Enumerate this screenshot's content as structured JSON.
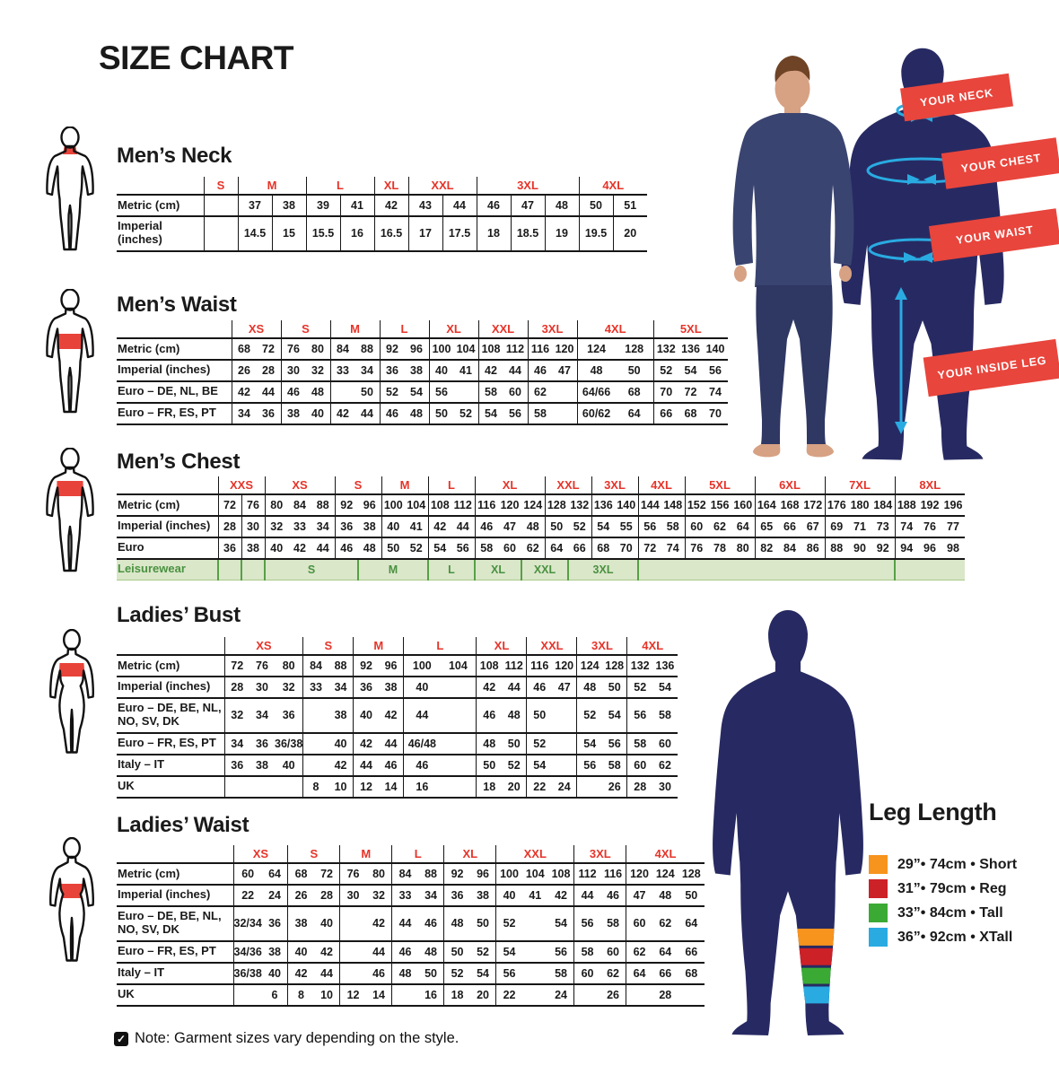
{
  "page": {
    "title": "SIZE CHART",
    "note": "Note: Garment sizes vary depending on the style."
  },
  "sections": [
    {
      "title": "Men’s Neck",
      "table": {
        "groups": [
          {
            "label": "S",
            "span": 1
          },
          {
            "label": "M",
            "span": 2
          },
          {
            "label": "L",
            "span": 2
          },
          {
            "label": "XL",
            "span": 1
          },
          {
            "label": "XXL",
            "span": 2
          },
          {
            "label": "3XL",
            "span": 3
          },
          {
            "label": "4XL",
            "span": 2
          }
        ],
        "rows": [
          {
            "label": "Metric (cm)",
            "cells": [
              "",
              "37",
              "38",
              "39",
              "41",
              "42",
              "43",
              "44",
              "46",
              "47",
              "48",
              "50",
              "51"
            ]
          },
          {
            "label": "Imperial (inches)",
            "cells": [
              "",
              "14.5",
              "15",
              "15.5",
              "16",
              "16.5",
              "17",
              "17.5",
              "18",
              "18.5",
              "19",
              "19.5",
              "20"
            ]
          }
        ]
      }
    },
    {
      "title": "Men’s Waist",
      "table": {
        "groups": [
          {
            "label": "XS",
            "span": 2
          },
          {
            "label": "S",
            "span": 2
          },
          {
            "label": "M",
            "span": 2
          },
          {
            "label": "L",
            "span": 2
          },
          {
            "label": "XL",
            "span": 2
          },
          {
            "label": "XXL",
            "span": 2
          },
          {
            "label": "3XL",
            "span": 2
          },
          {
            "label": "4XL",
            "span": 2,
            "wf": 1.55
          },
          {
            "label": "5XL",
            "span": 3
          }
        ],
        "rows": [
          {
            "label": "Metric (cm)",
            "cells": [
              "68",
              "72",
              "76",
              "80",
              "84",
              "88",
              "92",
              "96",
              "100",
              "104",
              "108",
              "112",
              "116",
              "120",
              "124",
              "128",
              "132",
              "136",
              "140"
            ]
          },
          {
            "label": "Imperial (inches)",
            "cells": [
              "26",
              "28",
              "30",
              "32",
              "33",
              "34",
              "36",
              "38",
              "40",
              "41",
              "42",
              "44",
              "46",
              "47",
              "48",
              "50",
              "52",
              "54",
              "56"
            ]
          },
          {
            "label": "Euro – DE, NL, BE",
            "cells": [
              "42",
              "44",
              "46",
              "48",
              "",
              "50",
              "52",
              "54",
              "56",
              "",
              "58",
              "60",
              "62",
              "",
              "64/66",
              "68",
              "70",
              "72",
              "74"
            ]
          },
          {
            "label": "Euro – FR, ES, PT",
            "cells": [
              "34",
              "36",
              "38",
              "40",
              "42",
              "44",
              "46",
              "48",
              "50",
              "52",
              "54",
              "56",
              "58",
              "",
              "60/62",
              "64",
              "66",
              "68",
              "70"
            ]
          }
        ]
      }
    },
    {
      "title": "Men’s Chest",
      "table": {
        "groups": [
          {
            "label": "XXS",
            "span": 2
          },
          {
            "label": "XS",
            "span": 3
          },
          {
            "label": "S",
            "span": 2
          },
          {
            "label": "M",
            "span": 2
          },
          {
            "label": "L",
            "span": 2
          },
          {
            "label": "XL",
            "span": 3
          },
          {
            "label": "XXL",
            "span": 2
          },
          {
            "label": "3XL",
            "span": 2
          },
          {
            "label": "4XL",
            "span": 2
          },
          {
            "label": "5XL",
            "span": 3
          },
          {
            "label": "6XL",
            "span": 3
          },
          {
            "label": "7XL",
            "span": 3
          },
          {
            "label": "8XL",
            "span": 3
          }
        ],
        "rows": [
          {
            "label": "Metric (cm)",
            "cells": [
              "72",
              "76",
              "80",
              "84",
              "88",
              "92",
              "96",
              "100",
              "104",
              "108",
              "112",
              "116",
              "120",
              "124",
              "128",
              "132",
              "136",
              "140",
              "144",
              "148",
              "152",
              "156",
              "160",
              "164",
              "168",
              "172",
              "176",
              "180",
              "184",
              "188",
              "192",
              "196"
            ]
          },
          {
            "label": "Imperial (inches)",
            "cells": [
              "28",
              "30",
              "32",
              "33",
              "34",
              "36",
              "38",
              "40",
              "41",
              "42",
              "44",
              "46",
              "47",
              "48",
              "50",
              "52",
              "54",
              "55",
              "56",
              "58",
              "60",
              "62",
              "64",
              "65",
              "66",
              "67",
              "69",
              "71",
              "73",
              "74",
              "76",
              "77"
            ]
          },
          {
            "label": "Euro",
            "cells": [
              "36",
              "38",
              "40",
              "42",
              "44",
              "46",
              "48",
              "50",
              "52",
              "54",
              "56",
              "58",
              "60",
              "62",
              "64",
              "66",
              "68",
              "70",
              "72",
              "74",
              "76",
              "78",
              "80",
              "82",
              "84",
              "86",
              "88",
              "90",
              "92",
              "94",
              "96",
              "98"
            ]
          },
          {
            "label": "Leisurewear",
            "leisure": true,
            "cells": [
              "",
              "",
              {
                "v": "S",
                "span": 4
              },
              {
                "v": "M",
                "span": 3
              },
              {
                "v": "L",
                "span": 2
              },
              {
                "v": "XL",
                "span": 2
              },
              {
                "v": "XXL",
                "span": 2
              },
              {
                "v": "3XL",
                "span": 3
              },
              {
                "v": "",
                "span": 11
              },
              {
                "v": "",
                "span": 3
              }
            ]
          }
        ]
      }
    },
    {
      "title": "Ladies’ Bust",
      "table": {
        "groups": [
          {
            "label": "XS",
            "span": 3
          },
          {
            "label": "S",
            "span": 2
          },
          {
            "label": "M",
            "span": 2
          },
          {
            "label": "L",
            "span": 2,
            "wf": 1.45
          },
          {
            "label": "XL",
            "span": 2
          },
          {
            "label": "XXL",
            "span": 2
          },
          {
            "label": "3XL",
            "span": 2
          },
          {
            "label": "4XL",
            "span": 2
          }
        ],
        "rows": [
          {
            "label": "Metric (cm)",
            "cells": [
              "72",
              "76",
              "80",
              "84",
              "88",
              "92",
              "96",
              "100",
              "104",
              "108",
              "112",
              "116",
              "120",
              "124",
              "128",
              "132",
              "136"
            ]
          },
          {
            "label": "Imperial (inches)",
            "cells": [
              "28",
              "30",
              "32",
              "33",
              "34",
              "36",
              "38",
              "40",
              "",
              "42",
              "44",
              "46",
              "47",
              "48",
              "50",
              "52",
              "54"
            ]
          },
          {
            "label": "Euro –  DE, BE, NL, NO, SV, DK",
            "cells": [
              "32",
              "34",
              "36",
              "",
              "38",
              "40",
              "42",
              "44",
              "",
              "46",
              "48",
              "50",
              "",
              "52",
              "54",
              "56",
              "58"
            ]
          },
          {
            "label": "Euro – FR, ES, PT",
            "cells": [
              "34",
              "36",
              "36/38",
              "",
              "40",
              "42",
              "44",
              "46/48",
              "",
              "48",
              "50",
              "52",
              "",
              "54",
              "56",
              "58",
              "60"
            ]
          },
          {
            "label": "Italy – IT",
            "cells": [
              "36",
              "38",
              "40",
              "",
              "42",
              "44",
              "46",
              "46",
              "",
              "50",
              "52",
              "54",
              "",
              "56",
              "58",
              "60",
              "62"
            ]
          },
          {
            "label": "UK",
            "cells": [
              "",
              "",
              "",
              "8",
              "10",
              "12",
              "14",
              "16",
              "",
              "18",
              "20",
              "22",
              "24",
              "",
              "26",
              "28",
              "30"
            ]
          }
        ]
      }
    },
    {
      "title": "Ladies’ Waist",
      "table": {
        "groups": [
          {
            "label": "XS",
            "span": 2
          },
          {
            "label": "S",
            "span": 2
          },
          {
            "label": "M",
            "span": 2
          },
          {
            "label": "L",
            "span": 2
          },
          {
            "label": "XL",
            "span": 2
          },
          {
            "label": "XXL",
            "span": 3
          },
          {
            "label": "3XL",
            "span": 2
          },
          {
            "label": "4XL",
            "span": 3
          }
        ],
        "rows": [
          {
            "label": "Metric (cm)",
            "cells": [
              "60",
              "64",
              "68",
              "72",
              "76",
              "80",
              "84",
              "88",
              "92",
              "96",
              "100",
              "104",
              "108",
              "112",
              "116",
              "120",
              "124",
              "128"
            ]
          },
          {
            "label": "Imperial (inches)",
            "cells": [
              "22",
              "24",
              "26",
              "28",
              "30",
              "32",
              "33",
              "34",
              "36",
              "38",
              "40",
              "41",
              "42",
              "44",
              "46",
              "47",
              "48",
              "50"
            ]
          },
          {
            "label": "Euro – DE, BE, NL, NO, SV, DK",
            "cells": [
              "32/34",
              "36",
              "38",
              "40",
              "",
              "42",
              "44",
              "46",
              "48",
              "50",
              "52",
              "",
              "54",
              "56",
              "58",
              "60",
              "62",
              "64"
            ]
          },
          {
            "label": "Euro – FR, ES, PT",
            "cells": [
              "34/36",
              "38",
              "40",
              "42",
              "",
              "44",
              "46",
              "48",
              "50",
              "52",
              "54",
              "",
              "56",
              "58",
              "60",
              "62",
              "64",
              "66"
            ]
          },
          {
            "label": "Italy – IT",
            "cells": [
              "36/38",
              "40",
              "42",
              "44",
              "",
              "46",
              "48",
              "50",
              "52",
              "54",
              "56",
              "",
              "58",
              "60",
              "62",
              "64",
              "66",
              "68"
            ]
          },
          {
            "label": "UK",
            "cells": [
              "",
              "6",
              "8",
              "10",
              "12",
              "14",
              "",
              "16",
              "18",
              "20",
              "22",
              "",
              "24",
              "",
              "26",
              "",
              "28",
              ""
            ]
          }
        ]
      }
    }
  ],
  "illustration": {
    "banners": [
      "YOUR NECK",
      "YOUR CHEST",
      "YOUR WAIST",
      "YOUR INSIDE LEG"
    ]
  },
  "leg_length": {
    "title": "Leg Length",
    "items": [
      {
        "color": "#F7941E",
        "label": "29”• 74cm • Short"
      },
      {
        "color": "#CC2127",
        "label": "31”• 79cm • Reg"
      },
      {
        "color": "#3AAA35",
        "label": "33”• 84cm • Tall"
      },
      {
        "color": "#29ABE2",
        "label": "36”• 92cm • XTall"
      }
    ]
  },
  "colors": {
    "header_red": "#E63429",
    "banner_red": "#E8453C",
    "navy": "#272A62",
    "cyan": "#29ABE2",
    "leisure_green": "#4A9140",
    "leisure_bg": "#DAE7C9",
    "figure_red": "#E8433A"
  }
}
